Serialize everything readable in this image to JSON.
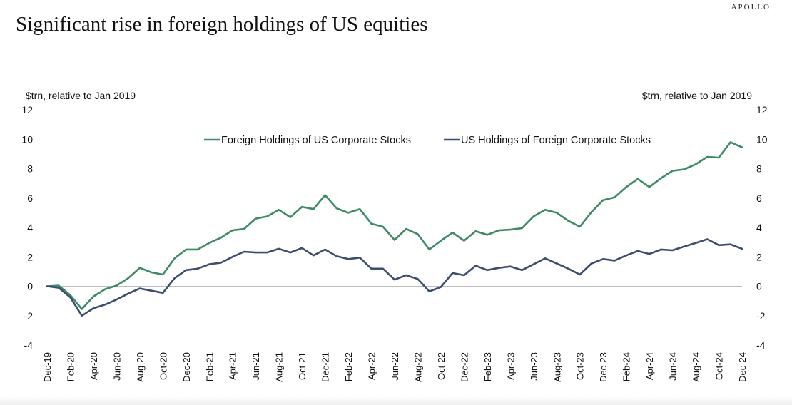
{
  "brand": "APOLLO",
  "title": "Significant rise in foreign holdings of US equities",
  "chart_data": {
    "type": "line",
    "title": "Significant rise in foreign holdings of US equities",
    "ylabel_left": "$trn, relative to Jan 2019",
    "ylabel_right": "$trn, relative to Jan 2019",
    "ylim": [
      -4,
      12
    ],
    "yticks": [
      -4,
      -2,
      0,
      2,
      4,
      6,
      8,
      10,
      12
    ],
    "grid": false,
    "legend_position": "top-center",
    "x_tick_labels": [
      "Dec-19",
      "Feb-20",
      "Apr-20",
      "Jun-20",
      "Aug-20",
      "Oct-20",
      "Dec-20",
      "Feb-21",
      "Apr-21",
      "Jun-21",
      "Aug-21",
      "Oct-21",
      "Dec-21",
      "Feb-22",
      "Apr-22",
      "Jun-22",
      "Aug-22",
      "Oct-22",
      "Dec-22",
      "Feb-23",
      "Apr-23",
      "Jun-23",
      "Aug-23",
      "Oct-23",
      "Dec-23",
      "Feb-24",
      "Apr-24",
      "Jun-24",
      "Aug-24",
      "Oct-24",
      "Dec-24"
    ],
    "series": [
      {
        "name": "Foreign Holdings of US Corporate Stocks",
        "color": "#3d8a64",
        "values": [
          0,
          0.05,
          -0.6,
          -1.55,
          -0.7,
          -0.2,
          0.05,
          0.55,
          1.25,
          0.95,
          0.8,
          1.9,
          2.5,
          2.5,
          2.95,
          3.3,
          3.8,
          3.9,
          4.6,
          4.75,
          5.2,
          4.7,
          5.4,
          5.25,
          6.2,
          5.3,
          5.0,
          5.25,
          4.25,
          4.05,
          3.15,
          3.9,
          3.55,
          2.5,
          3.1,
          3.65,
          3.1,
          3.75,
          3.5,
          3.8,
          3.85,
          3.95,
          4.75,
          5.2,
          5.0,
          4.45,
          4.05,
          5.05,
          5.85,
          6.05,
          6.75,
          7.3,
          6.75,
          7.35,
          7.85,
          7.95,
          8.3,
          8.8,
          8.75,
          9.8,
          9.45
        ]
      },
      {
        "name": "US Holdings of Foreign Corporate Stocks",
        "color": "#3c4d6e",
        "values": [
          0,
          -0.1,
          -0.75,
          -2.0,
          -1.5,
          -1.25,
          -0.9,
          -0.5,
          -0.15,
          -0.3,
          -0.45,
          0.55,
          1.1,
          1.2,
          1.5,
          1.6,
          2.0,
          2.35,
          2.3,
          2.3,
          2.55,
          2.3,
          2.6,
          2.1,
          2.5,
          2.05,
          1.85,
          1.95,
          1.2,
          1.2,
          0.45,
          0.75,
          0.5,
          -0.35,
          -0.05,
          0.9,
          0.75,
          1.4,
          1.1,
          1.25,
          1.35,
          1.1,
          1.5,
          1.9,
          1.55,
          1.2,
          0.8,
          1.55,
          1.85,
          1.75,
          2.1,
          2.4,
          2.2,
          2.5,
          2.45,
          2.7,
          2.95,
          3.2,
          2.8,
          2.85,
          2.55
        ]
      }
    ]
  }
}
